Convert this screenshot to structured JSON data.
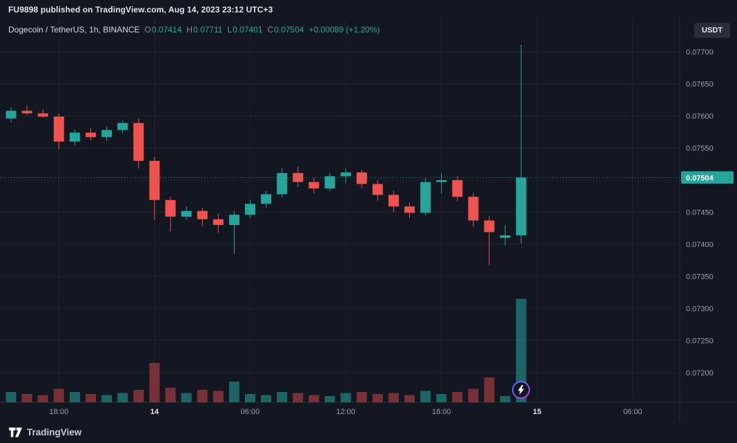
{
  "attribution": {
    "text": "FU9898 published on TradingView.com, Aug 14, 2023 23:12 UTC+3"
  },
  "header": {
    "symbol": "Dogecoin / TetherUS, 1h, BINANCE",
    "ohlc": {
      "o_label": "O",
      "o": "0.07414",
      "h_label": "H",
      "h": "0.07711",
      "l_label": "L",
      "l": "0.07401",
      "c_label": "C",
      "c": "0.07504",
      "change": "+0.00089 (+1.20%)"
    },
    "currency_button": "USDT"
  },
  "footer": {
    "brand": "TradingView"
  },
  "colors": {
    "background": "#131722",
    "up": "#26a69a",
    "down": "#ef5350",
    "vol_up": "rgba(38,166,154,0.55)",
    "vol_down": "rgba(239,83,80,0.45)",
    "grid": "rgba(255,255,255,0.05)",
    "axis_border": "#2a2e39",
    "axis_text": "#9aa0ac",
    "axis_text_strong": "#e0e3ea",
    "price_label_text": "#ffffff"
  },
  "chart_data": {
    "type": "candlestick",
    "title": "Dogecoin / TetherUS",
    "interval": "1h",
    "exchange": "BINANCE",
    "quote_currency": "USDT",
    "last_price": 0.07504,
    "visible_range": [
      0.0717,
      0.0775
    ],
    "grid": true,
    "price_axis": [
      0.077,
      0.0765,
      0.076,
      0.0755,
      0.075,
      0.0745,
      0.074,
      0.0735,
      0.073,
      0.0725,
      0.072
    ],
    "time_axis": [
      {
        "label": "18:00",
        "slot": 3,
        "day": false
      },
      {
        "label": "14",
        "slot": 9,
        "day": true
      },
      {
        "label": "06:00",
        "slot": 15,
        "day": false
      },
      {
        "label": "12:00",
        "slot": 21,
        "day": false
      },
      {
        "label": "18:00",
        "slot": 27,
        "day": false
      },
      {
        "label": "15",
        "slot": 33,
        "day": true
      },
      {
        "label": "06:00",
        "slot": 39,
        "day": false
      }
    ],
    "volume_relative": true,
    "candles": [
      {
        "o": 0.07596,
        "h": 0.07613,
        "l": 0.0759,
        "c": 0.07608,
        "v": 0.1
      },
      {
        "o": 0.07608,
        "h": 0.07616,
        "l": 0.07601,
        "c": 0.07604,
        "v": 0.08
      },
      {
        "o": 0.07604,
        "h": 0.0761,
        "l": 0.07597,
        "c": 0.07599,
        "v": 0.07
      },
      {
        "o": 0.07599,
        "h": 0.07604,
        "l": 0.07548,
        "c": 0.0756,
        "v": 0.13
      },
      {
        "o": 0.0756,
        "h": 0.07579,
        "l": 0.07554,
        "c": 0.07574,
        "v": 0.1
      },
      {
        "o": 0.07574,
        "h": 0.07581,
        "l": 0.07562,
        "c": 0.07567,
        "v": 0.08
      },
      {
        "o": 0.07567,
        "h": 0.07583,
        "l": 0.07561,
        "c": 0.07578,
        "v": 0.07
      },
      {
        "o": 0.07578,
        "h": 0.07593,
        "l": 0.07573,
        "c": 0.07589,
        "v": 0.09
      },
      {
        "o": 0.07589,
        "h": 0.07596,
        "l": 0.07518,
        "c": 0.0753,
        "v": 0.12
      },
      {
        "o": 0.0753,
        "h": 0.07536,
        "l": 0.07438,
        "c": 0.07469,
        "v": 0.38
      },
      {
        "o": 0.07469,
        "h": 0.07474,
        "l": 0.0742,
        "c": 0.07443,
        "v": 0.14
      },
      {
        "o": 0.07443,
        "h": 0.07459,
        "l": 0.07438,
        "c": 0.07452,
        "v": 0.09
      },
      {
        "o": 0.07452,
        "h": 0.07457,
        "l": 0.07428,
        "c": 0.07439,
        "v": 0.12
      },
      {
        "o": 0.07439,
        "h": 0.07447,
        "l": 0.07418,
        "c": 0.0743,
        "v": 0.11
      },
      {
        "o": 0.0743,
        "h": 0.07452,
        "l": 0.07385,
        "c": 0.07446,
        "v": 0.2
      },
      {
        "o": 0.07446,
        "h": 0.07469,
        "l": 0.07441,
        "c": 0.07463,
        "v": 0.08
      },
      {
        "o": 0.07463,
        "h": 0.07483,
        "l": 0.07457,
        "c": 0.07478,
        "v": 0.07
      },
      {
        "o": 0.07478,
        "h": 0.07519,
        "l": 0.07473,
        "c": 0.07511,
        "v": 0.1
      },
      {
        "o": 0.07511,
        "h": 0.07521,
        "l": 0.07489,
        "c": 0.07497,
        "v": 0.09
      },
      {
        "o": 0.07497,
        "h": 0.07504,
        "l": 0.07479,
        "c": 0.07487,
        "v": 0.07
      },
      {
        "o": 0.07487,
        "h": 0.07512,
        "l": 0.07483,
        "c": 0.07506,
        "v": 0.06
      },
      {
        "o": 0.07506,
        "h": 0.07518,
        "l": 0.07495,
        "c": 0.07512,
        "v": 0.09
      },
      {
        "o": 0.07512,
        "h": 0.07516,
        "l": 0.07487,
        "c": 0.07494,
        "v": 0.1
      },
      {
        "o": 0.07494,
        "h": 0.075,
        "l": 0.07468,
        "c": 0.07477,
        "v": 0.08
      },
      {
        "o": 0.07477,
        "h": 0.07483,
        "l": 0.0745,
        "c": 0.07459,
        "v": 0.09
      },
      {
        "o": 0.07459,
        "h": 0.07465,
        "l": 0.07441,
        "c": 0.07449,
        "v": 0.07
      },
      {
        "o": 0.07449,
        "h": 0.07503,
        "l": 0.07445,
        "c": 0.07497,
        "v": 0.11
      },
      {
        "o": 0.07497,
        "h": 0.07511,
        "l": 0.07479,
        "c": 0.075,
        "v": 0.08
      },
      {
        "o": 0.075,
        "h": 0.07506,
        "l": 0.07467,
        "c": 0.07474,
        "v": 0.1
      },
      {
        "o": 0.07474,
        "h": 0.0748,
        "l": 0.07427,
        "c": 0.07437,
        "v": 0.13
      },
      {
        "o": 0.07437,
        "h": 0.07444,
        "l": 0.07368,
        "c": 0.07419,
        "v": 0.24
      },
      {
        "o": 0.0741,
        "h": 0.0743,
        "l": 0.07398,
        "c": 0.07414,
        "v": 0.06
      },
      {
        "o": 0.07414,
        "h": 0.07711,
        "l": 0.07401,
        "c": 0.07504,
        "v": 1.0
      }
    ]
  }
}
